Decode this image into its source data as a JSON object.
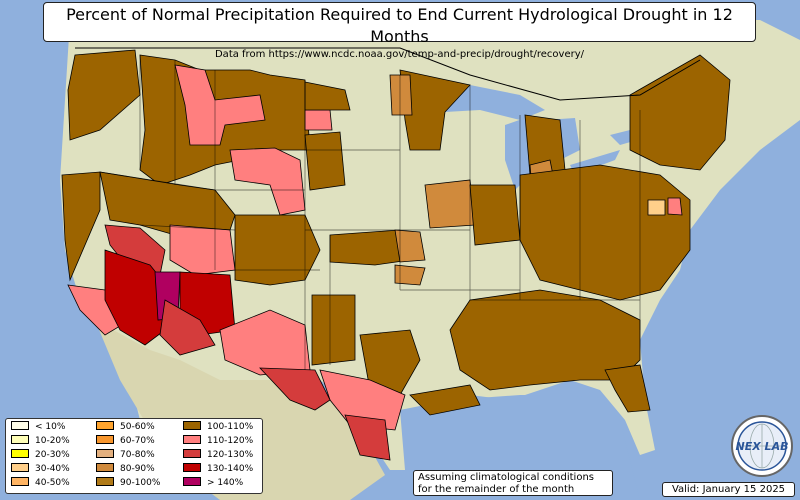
{
  "title": "Percent of Normal Precipitation Required to End Current Hydrological Drought in 12 Months",
  "subtitle": "Data from https://www.ncdc.noaa.gov/temp-and-precip/drought/recovery/",
  "legend": {
    "items": [
      {
        "label": "< 10%",
        "color": "#fffde8"
      },
      {
        "label": "10-20%",
        "color": "#ffffb8"
      },
      {
        "label": "20-30%",
        "color": "#ffff00"
      },
      {
        "label": "30-40%",
        "color": "#ffcf8a"
      },
      {
        "label": "40-50%",
        "color": "#ffb463"
      },
      {
        "label": "50-60%",
        "color": "#ffa42e"
      },
      {
        "label": "60-70%",
        "color": "#f7962e"
      },
      {
        "label": "70-80%",
        "color": "#e3b07f"
      },
      {
        "label": "80-90%",
        "color": "#d08a3c"
      },
      {
        "label": "90-100%",
        "color": "#b07a18"
      },
      {
        "label": "100-110%",
        "color": "#9c6400"
      },
      {
        "label": "110-120%",
        "color": "#ff7f7f"
      },
      {
        "label": "120-130%",
        "color": "#d43c3c"
      },
      {
        "label": "130-140%",
        "color": "#c00000"
      },
      {
        "label": "> 140%",
        "color": "#b00060"
      }
    ]
  },
  "note": "Assuming climatological conditions for the remainder of the month",
  "valid": "Valid: January 15 2025",
  "logo_text": "NEX LAB",
  "colors": {
    "ocean": "#8fb0dd",
    "land": "#e6e3c4",
    "border": "#000000"
  }
}
